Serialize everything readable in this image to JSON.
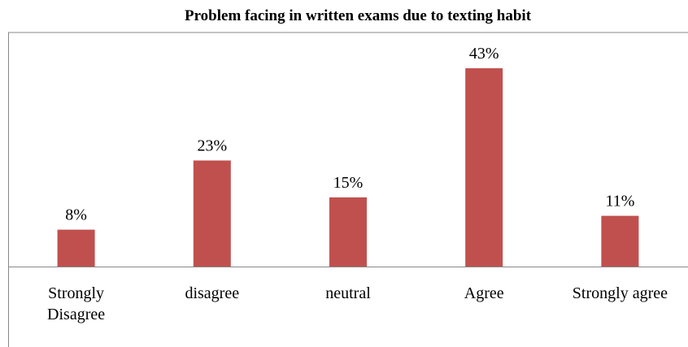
{
  "chart_data": {
    "type": "bar",
    "title": "Problem facing in written exams due to texting habit",
    "categories": [
      "Strongly Disagree",
      "disagree",
      "neutral",
      "Agree",
      "Strongly agree"
    ],
    "values": [
      8,
      23,
      15,
      43,
      11
    ],
    "value_labels": [
      "8%",
      "23%",
      "15%",
      "43%",
      "11%"
    ],
    "color": "#c0504d"
  }
}
